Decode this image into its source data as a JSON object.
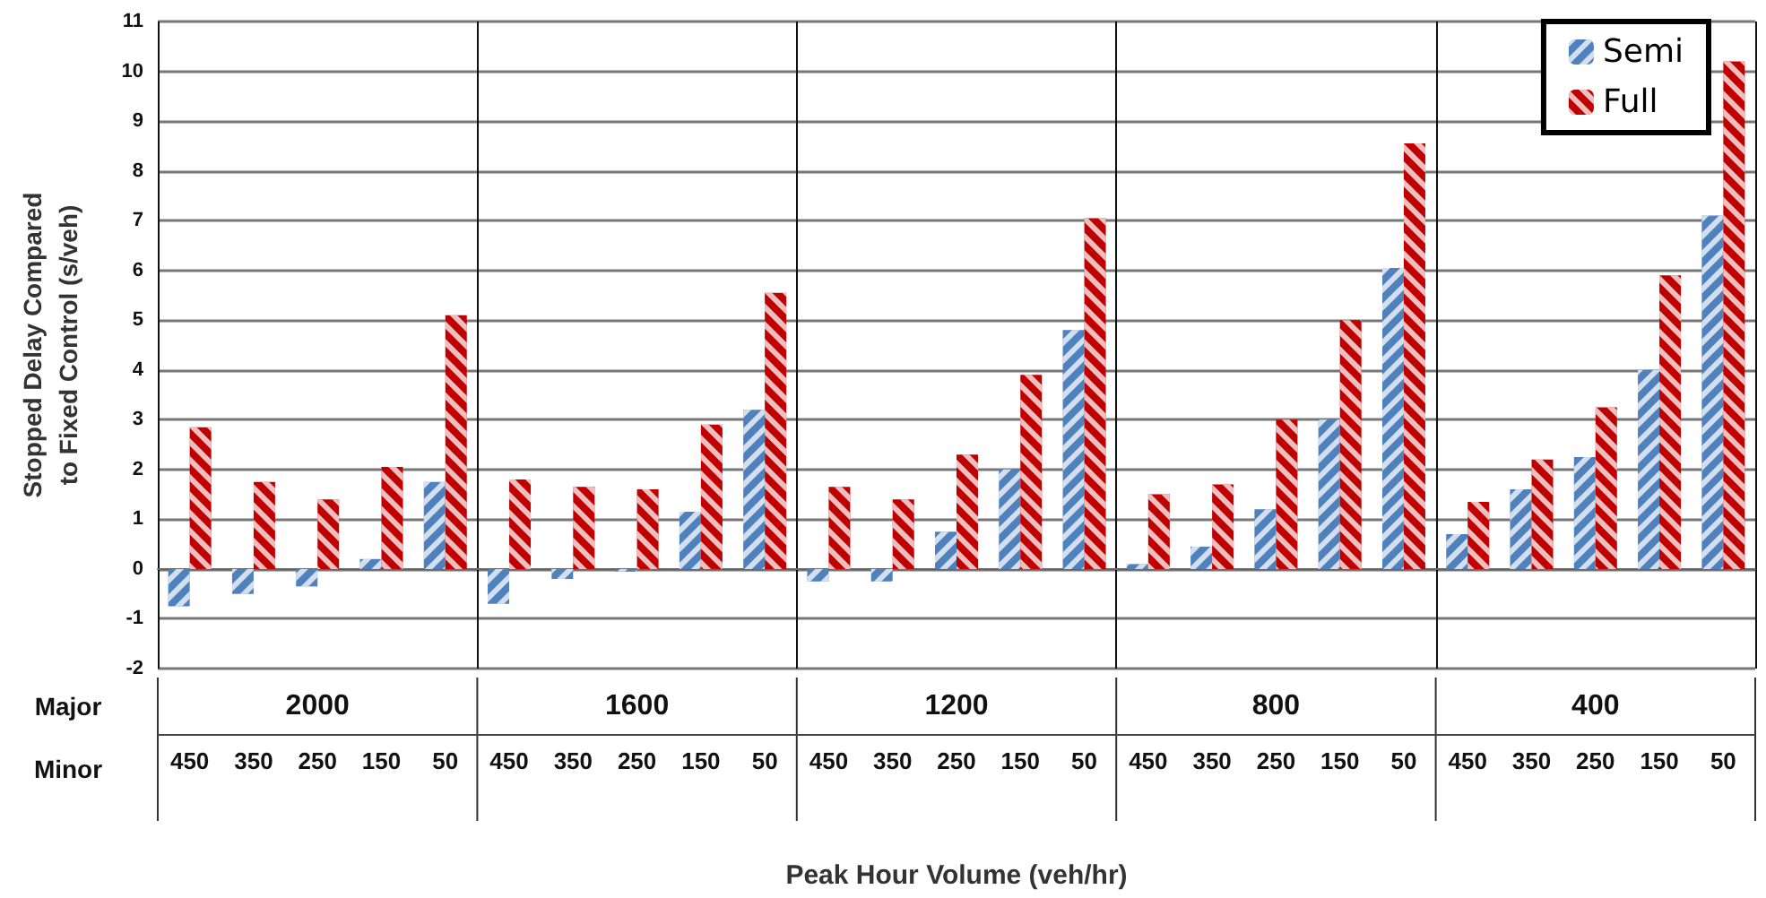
{
  "chart_data": {
    "type": "bar",
    "ylabel": "Stopped Delay Compared\nto Fixed Control (s/veh)",
    "xlabel": "Peak Hour Volume (veh/hr)",
    "categories": [
      "450",
      "350",
      "250",
      "150",
      "50",
      "450",
      "350",
      "250",
      "150",
      "50",
      "450",
      "350",
      "250",
      "150",
      "50",
      "450",
      "350",
      "250",
      "150",
      "50",
      "450",
      "350",
      "250",
      "150",
      "50"
    ],
    "annotations": [
      "Major",
      "Minor",
      "2000",
      "1600",
      "1200",
      "800",
      "400"
    ],
    "series": [
      {
        "name": "Semi",
        "color": "#4f81bd",
        "values": [
          -0.75,
          -0.5,
          -0.35,
          0.2,
          1.75,
          -0.7,
          -0.2,
          -0.05,
          1.15,
          3.2,
          -0.25,
          -0.25,
          0.75,
          2.0,
          4.8,
          0.1,
          0.45,
          1.2,
          3.0,
          6.05,
          0.7,
          1.6,
          2.25,
          4.0,
          7.1
        ]
      },
      {
        "name": "Full",
        "color": "#c00000",
        "values": [
          2.85,
          1.75,
          1.4,
          2.05,
          5.1,
          1.8,
          1.65,
          1.6,
          2.9,
          5.55,
          1.65,
          1.4,
          2.3,
          3.9,
          7.05,
          1.5,
          1.7,
          3.0,
          5.0,
          8.55,
          1.35,
          2.2,
          3.25,
          5.9,
          10.2
        ]
      }
    ],
    "ylim": [
      -2,
      11
    ],
    "yticks": [
      -2,
      -1,
      0,
      1,
      2,
      3,
      4,
      5,
      6,
      7,
      8,
      9,
      10,
      11
    ],
    "grid": "y",
    "legend": "top right"
  }
}
